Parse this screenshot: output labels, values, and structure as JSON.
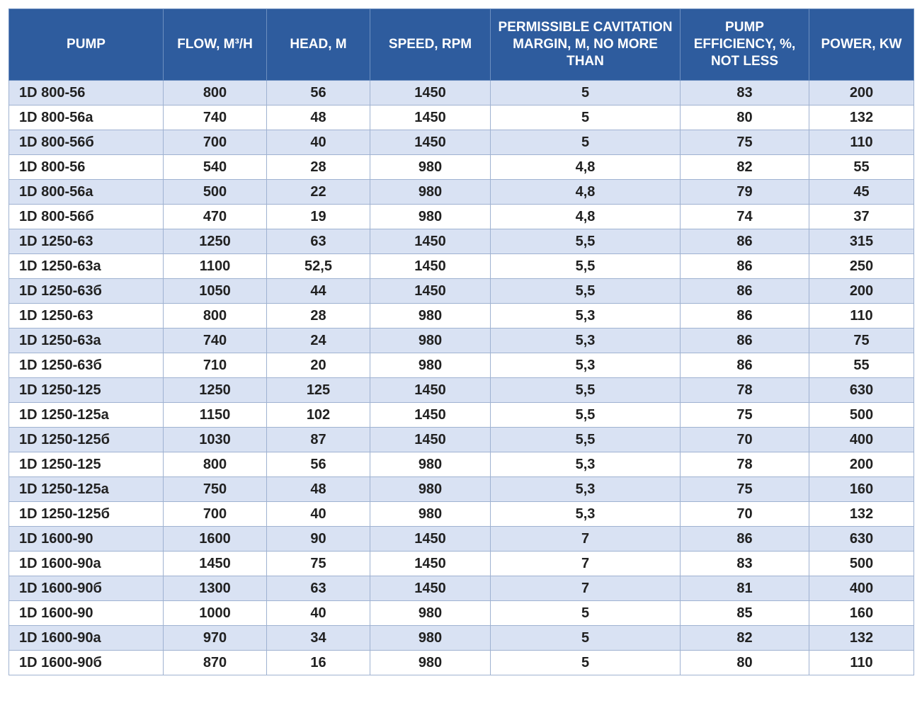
{
  "table": {
    "columns": [
      {
        "key": "pump",
        "label": "PUMP"
      },
      {
        "key": "flow",
        "label": "FLOW, M³/H"
      },
      {
        "key": "head",
        "label": "HEAD, M"
      },
      {
        "key": "speed",
        "label": "SPEED, RPM"
      },
      {
        "key": "cavitation",
        "label": "PERMISSIBLE CAVITATION MARGIN, M, NO MORE THAN"
      },
      {
        "key": "efficiency",
        "label": "PUMP EFFICIENCY, %, NOT LESS"
      },
      {
        "key": "power",
        "label": "POWER, KW"
      }
    ],
    "rows": [
      [
        "1D 800-56",
        "800",
        "56",
        "1450",
        "5",
        "83",
        "200"
      ],
      [
        "1D 800-56a",
        "740",
        "48",
        "1450",
        "5",
        "80",
        "132"
      ],
      [
        "1D 800-56б",
        "700",
        "40",
        "1450",
        "5",
        "75",
        "110"
      ],
      [
        "1D 800-56",
        "540",
        "28",
        "980",
        "4,8",
        "82",
        "55"
      ],
      [
        "1D 800-56a",
        "500",
        "22",
        "980",
        "4,8",
        "79",
        "45"
      ],
      [
        "1D 800-56б",
        "470",
        "19",
        "980",
        "4,8",
        "74",
        "37"
      ],
      [
        "1D 1250-63",
        "1250",
        "63",
        "1450",
        "5,5",
        "86",
        "315"
      ],
      [
        "1D 1250-63a",
        "1100",
        "52,5",
        "1450",
        "5,5",
        "86",
        "250"
      ],
      [
        "1D 1250-63б",
        "1050",
        "44",
        "1450",
        "5,5",
        "86",
        "200"
      ],
      [
        "1D 1250-63",
        "800",
        "28",
        "980",
        "5,3",
        "86",
        "110"
      ],
      [
        "1D 1250-63a",
        "740",
        "24",
        "980",
        "5,3",
        "86",
        "75"
      ],
      [
        "1D 1250-63б",
        "710",
        "20",
        "980",
        "5,3",
        "86",
        "55"
      ],
      [
        "1D 1250-125",
        "1250",
        "125",
        "1450",
        "5,5",
        "78",
        "630"
      ],
      [
        "1D 1250-125a",
        "1150",
        "102",
        "1450",
        "5,5",
        "75",
        "500"
      ],
      [
        "1D 1250-125б",
        "1030",
        "87",
        "1450",
        "5,5",
        "70",
        "400"
      ],
      [
        "1D 1250-125",
        "800",
        "56",
        "980",
        "5,3",
        "78",
        "200"
      ],
      [
        "1D 1250-125a",
        "750",
        "48",
        "980",
        "5,3",
        "75",
        "160"
      ],
      [
        "1D 1250-125б",
        "700",
        "40",
        "980",
        "5,3",
        "70",
        "132"
      ],
      [
        "1D 1600-90",
        "1600",
        "90",
        "1450",
        "7",
        "86",
        "630"
      ],
      [
        "1D 1600-90a",
        "1450",
        "75",
        "1450",
        "7",
        "83",
        "500"
      ],
      [
        "1D 1600-90б",
        "1300",
        "63",
        "1450",
        "7",
        "81",
        "400"
      ],
      [
        "1D 1600-90",
        "1000",
        "40",
        "980",
        "5",
        "85",
        "160"
      ],
      [
        "1D 1600-90a",
        "970",
        "34",
        "980",
        "5",
        "82",
        "132"
      ],
      [
        "1D 1600-90б",
        "870",
        "16",
        "980",
        "5",
        "80",
        "110"
      ]
    ]
  },
  "colors": {
    "header_bg": "#2E5C9E",
    "header_text": "#FFFFFF",
    "row_alt_bg": "#D9E2F3",
    "row_bg": "#FFFFFF",
    "body_text": "#212121",
    "grid_border": "#9FB2D1"
  }
}
